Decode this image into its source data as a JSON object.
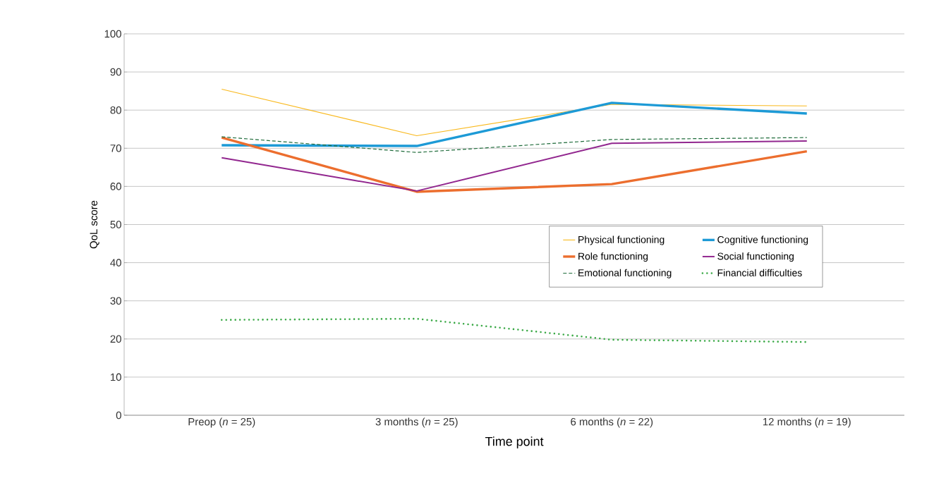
{
  "chart_data": {
    "type": "line",
    "xlabel": "Time point",
    "ylabel": "QoL score",
    "categories": [
      "Preop (*n* = 25)",
      "3 months (*n* = 25)",
      "6 months (*n* = 22)",
      "12 months (*n* = 19)"
    ],
    "ylim": [
      0,
      100
    ],
    "yticks": [
      0,
      10,
      20,
      30,
      40,
      50,
      60,
      70,
      80,
      90,
      100
    ],
    "grid": "y",
    "legend": "right",
    "marker": "none",
    "series": [
      {
        "name": "Physical functioning",
        "color": "#f9b81b",
        "line_style": "solid",
        "values": [
          85.5,
          73.3,
          81.5,
          81.1
        ]
      },
      {
        "name": "Cognitive functioning",
        "color": "#1d9ad6",
        "line_style": "solid",
        "values": [
          70.8,
          70.6,
          81.9,
          79.1
        ]
      },
      {
        "name": "Role functioning",
        "color": "#ec6e2e",
        "line_style": "solid",
        "values": [
          72.8,
          58.6,
          60.6,
          69.2
        ]
      },
      {
        "name": "Social functioning",
        "color": "#92278f",
        "line_style": "solid",
        "values": [
          67.5,
          58.8,
          71.3,
          71.9
        ]
      },
      {
        "name": "Emotional functioning",
        "color": "#1e6b3a",
        "line_style": "dashed",
        "values": [
          73.0,
          68.9,
          72.3,
          72.8
        ]
      },
      {
        "name": "Financial difficulties",
        "color": "#3aa946",
        "line_style": "dotted",
        "values": [
          25.0,
          25.3,
          19.8,
          19.2
        ]
      }
    ]
  }
}
